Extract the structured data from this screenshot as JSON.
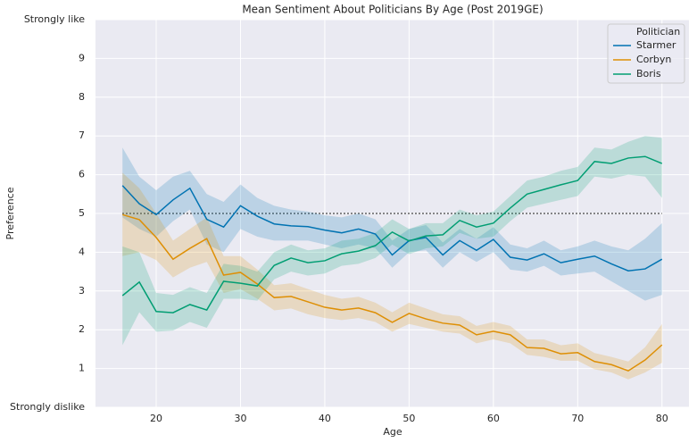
{
  "chart_data": {
    "type": "line",
    "title": "Mean Sentiment About Politicians By Age (Post 2019GE)",
    "x_label": "Age",
    "y_label": "Preference",
    "x": [
      16,
      18,
      20,
      22,
      24,
      26,
      28,
      30,
      32,
      34,
      36,
      38,
      40,
      42,
      44,
      46,
      48,
      50,
      52,
      54,
      56,
      58,
      60,
      62,
      64,
      66,
      68,
      70,
      72,
      74,
      76,
      78,
      80
    ],
    "series": [
      {
        "name": "Starmer",
        "color": "#0173b2",
        "values": [
          5.72,
          5.25,
          4.97,
          5.35,
          5.65,
          4.85,
          4.65,
          5.2,
          4.93,
          4.73,
          4.68,
          4.66,
          4.57,
          4.5,
          4.6,
          4.47,
          3.93,
          4.3,
          4.38,
          3.93,
          4.3,
          4.05,
          4.33,
          3.87,
          3.8,
          3.96,
          3.73,
          3.82,
          3.9,
          3.7,
          3.52,
          3.57,
          3.82
        ],
        "lower": [
          4.9,
          4.6,
          4.4,
          4.8,
          5.1,
          4.2,
          4.0,
          4.6,
          4.4,
          4.3,
          4.3,
          4.3,
          4.2,
          4.1,
          4.2,
          4.1,
          3.6,
          4.0,
          4.05,
          3.6,
          4.0,
          3.75,
          4.0,
          3.55,
          3.5,
          3.65,
          3.4,
          3.45,
          3.5,
          3.25,
          3.0,
          2.75,
          2.9
        ],
        "upper": [
          6.7,
          5.95,
          5.6,
          5.95,
          6.1,
          5.5,
          5.3,
          5.75,
          5.4,
          5.2,
          5.1,
          5.05,
          4.95,
          4.9,
          5.0,
          4.85,
          4.3,
          4.6,
          4.7,
          4.25,
          4.6,
          4.35,
          4.65,
          4.2,
          4.1,
          4.3,
          4.05,
          4.15,
          4.3,
          4.15,
          4.05,
          4.35,
          4.75
        ]
      },
      {
        "name": "Corbyn",
        "color": "#de8f05",
        "values": [
          4.97,
          4.84,
          4.38,
          3.82,
          4.1,
          4.35,
          3.41,
          3.48,
          3.18,
          2.83,
          2.86,
          2.72,
          2.58,
          2.51,
          2.56,
          2.44,
          2.19,
          2.42,
          2.28,
          2.17,
          2.12,
          1.87,
          1.96,
          1.87,
          1.54,
          1.52,
          1.38,
          1.41,
          1.18,
          1.1,
          0.94,
          1.22,
          1.61
        ],
        "lower": [
          3.9,
          4.0,
          3.8,
          3.35,
          3.6,
          3.75,
          2.95,
          3.05,
          2.8,
          2.5,
          2.55,
          2.4,
          2.3,
          2.25,
          2.3,
          2.2,
          1.95,
          2.15,
          2.05,
          1.95,
          1.9,
          1.65,
          1.75,
          1.65,
          1.35,
          1.3,
          1.2,
          1.2,
          0.98,
          0.9,
          0.72,
          0.9,
          1.15
        ],
        "upper": [
          6.05,
          5.65,
          5.0,
          4.3,
          4.6,
          4.9,
          3.9,
          3.9,
          3.55,
          3.15,
          3.2,
          3.05,
          2.9,
          2.8,
          2.85,
          2.7,
          2.45,
          2.7,
          2.55,
          2.4,
          2.35,
          2.1,
          2.2,
          2.1,
          1.75,
          1.75,
          1.6,
          1.65,
          1.4,
          1.3,
          1.18,
          1.55,
          2.15
        ]
      },
      {
        "name": "Boris",
        "color": "#029e73",
        "values": [
          2.88,
          3.23,
          2.47,
          2.44,
          2.65,
          2.51,
          3.25,
          3.2,
          3.13,
          3.66,
          3.85,
          3.73,
          3.78,
          3.96,
          4.03,
          4.17,
          4.52,
          4.29,
          4.42,
          4.45,
          4.82,
          4.65,
          4.75,
          5.14,
          5.5,
          5.62,
          5.74,
          5.85,
          6.34,
          6.29,
          6.43,
          6.47,
          6.29
        ],
        "lower": [
          1.6,
          2.45,
          1.95,
          1.98,
          2.2,
          2.05,
          2.8,
          2.8,
          2.75,
          3.3,
          3.5,
          3.4,
          3.45,
          3.65,
          3.7,
          3.85,
          4.2,
          3.95,
          4.1,
          4.15,
          4.5,
          4.35,
          4.4,
          4.8,
          5.15,
          5.25,
          5.35,
          5.45,
          5.95,
          5.9,
          6.0,
          5.95,
          5.4
        ],
        "upper": [
          4.15,
          4.0,
          2.95,
          2.9,
          3.1,
          2.95,
          3.7,
          3.65,
          3.5,
          4.0,
          4.2,
          4.05,
          4.1,
          4.3,
          4.35,
          4.5,
          4.85,
          4.6,
          4.75,
          4.75,
          5.1,
          4.95,
          5.05,
          5.45,
          5.85,
          5.95,
          6.1,
          6.2,
          6.7,
          6.65,
          6.85,
          7.0,
          6.95
        ]
      }
    ],
    "xlim": [
      12.8,
      83.2
    ],
    "xticks": [
      20,
      30,
      40,
      50,
      60,
      70,
      80
    ],
    "ylim": [
      0,
      10
    ],
    "yticks": [
      {
        "value": 0,
        "label": "Strongly dislike"
      },
      1,
      2,
      3,
      4,
      5,
      6,
      7,
      8,
      9,
      {
        "value": 10,
        "label": "Strongly like"
      }
    ],
    "hline": 5,
    "grid": true,
    "legend_title": "Politician",
    "legend_position": "upper right"
  }
}
